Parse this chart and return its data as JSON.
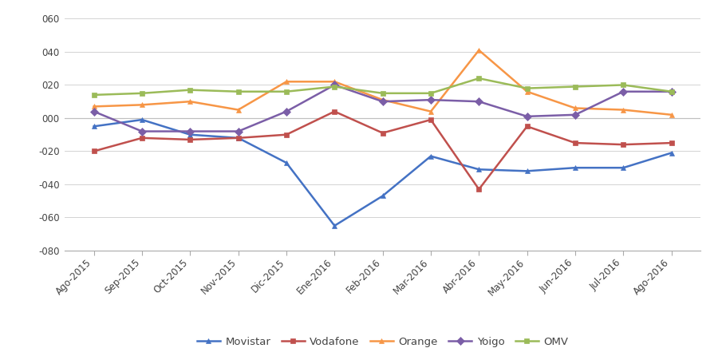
{
  "months": [
    "Ago-2015",
    "Sep-2015",
    "Oct-2015",
    "Nov-2015",
    "Dic-2015",
    "Ene-2016",
    "Feb-2016",
    "Mar-2016",
    "Abr-2016",
    "May-2016",
    "Jun-2016",
    "Jul-2016",
    "Ago-2016"
  ],
  "Movistar": [
    -5,
    -1,
    -10,
    -12,
    -27,
    -65,
    -47,
    -23,
    -31,
    -32,
    -30,
    -30,
    -21
  ],
  "Vodafone": [
    -20,
    -12,
    -13,
    -12,
    -10,
    4,
    -9,
    -1,
    -43,
    -5,
    -15,
    -16,
    -15
  ],
  "Orange": [
    7,
    8,
    10,
    5,
    22,
    22,
    11,
    4,
    41,
    16,
    6,
    5,
    2
  ],
  "Yoigo": [
    4,
    -8,
    -8,
    -8,
    4,
    20,
    10,
    11,
    10,
    1,
    2,
    16,
    16
  ],
  "OMV": [
    14,
    15,
    17,
    16,
    16,
    19,
    15,
    15,
    24,
    18,
    19,
    20,
    16
  ],
  "colors": {
    "Movistar": "#4472C4",
    "Vodafone": "#C0504D",
    "Orange": "#F79646",
    "Yoigo": "#7B5EA7",
    "OMV": "#9BBB59"
  },
  "marker_styles": {
    "Movistar": "^",
    "Vodafone": "s",
    "Orange": "^",
    "Yoigo": "D",
    "OMV": "s"
  },
  "ylim": [
    -80,
    65
  ],
  "yticks": [
    -80,
    -60,
    -40,
    -20,
    0,
    20,
    40,
    60
  ],
  "ytick_labels": [
    "-080",
    "-060",
    "-040",
    "-020",
    "000",
    "020",
    "040",
    "060"
  ],
  "background_color": "#ffffff",
  "series_order": [
    "Movistar",
    "Vodafone",
    "Orange",
    "Yoigo",
    "OMV"
  ]
}
